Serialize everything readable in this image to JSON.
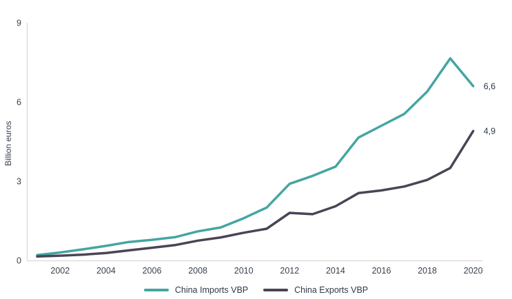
{
  "chart_data": {
    "type": "line",
    "title": "",
    "xlabel": "",
    "ylabel": "Billion euros",
    "x": [
      2001,
      2002,
      2003,
      2004,
      2005,
      2006,
      2007,
      2008,
      2009,
      2010,
      2011,
      2012,
      2013,
      2014,
      2015,
      2016,
      2017,
      2018,
      2019,
      2020
    ],
    "x_ticks": [
      2002,
      2004,
      2006,
      2008,
      2010,
      2012,
      2014,
      2016,
      2018,
      2020
    ],
    "y_ticks": [
      0,
      3,
      6,
      9
    ],
    "xlim": [
      2001,
      2020
    ],
    "ylim": [
      0,
      9
    ],
    "grid": false,
    "legend_position": "bottom-center",
    "series": [
      {
        "name": "China Imports VBP",
        "color": "#45A5A1",
        "end_label": "6,6",
        "values": [
          0.2,
          0.3,
          0.42,
          0.55,
          0.7,
          0.78,
          0.88,
          1.1,
          1.25,
          1.6,
          2.0,
          2.9,
          3.2,
          3.55,
          4.65,
          5.1,
          5.55,
          6.4,
          7.65,
          6.6
        ]
      },
      {
        "name": "China Exports VBP",
        "color": "#4B4456",
        "end_label": "4,9",
        "values": [
          0.15,
          0.18,
          0.22,
          0.28,
          0.38,
          0.48,
          0.58,
          0.75,
          0.87,
          1.05,
          1.2,
          1.8,
          1.75,
          2.05,
          2.55,
          2.65,
          2.8,
          3.05,
          3.5,
          4.9
        ]
      }
    ],
    "colors": {
      "axis": "#D9D9D9",
      "text": "#39414f"
    }
  }
}
